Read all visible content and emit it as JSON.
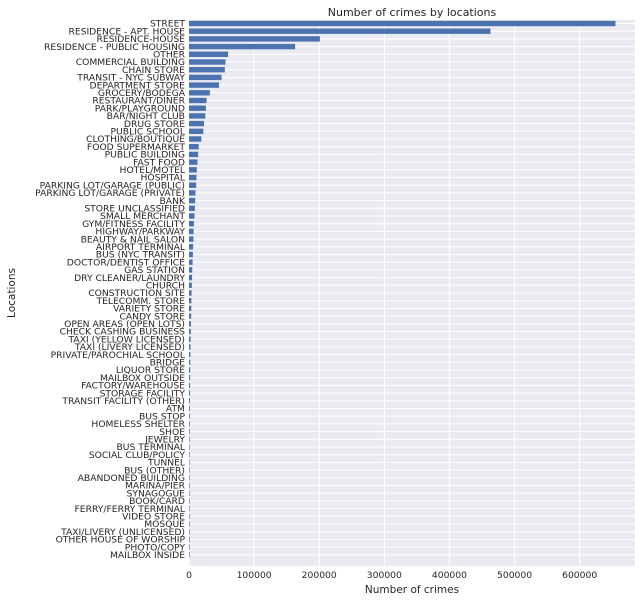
{
  "chart_data": {
    "type": "bar",
    "orientation": "horizontal",
    "title": "Number of crimes by locations",
    "xlabel": "Number of crimes",
    "ylabel": "Locations",
    "xlim": [
      0,
      685000
    ],
    "xticks": [
      0,
      100000,
      200000,
      300000,
      400000,
      500000,
      600000
    ],
    "grid": true,
    "bar_color": "#4c72b0",
    "background_color": "#eaeaf2",
    "categories": [
      "STREET",
      "RESIDENCE - APT. HOUSE",
      "RESIDENCE-HOUSE",
      "RESIDENCE - PUBLIC HOUSING",
      "OTHER",
      "COMMERCIAL BUILDING",
      "CHAIN STORE",
      "TRANSIT - NYC SUBWAY",
      "DEPARTMENT STORE",
      "GROCERY/BODEGA",
      "RESTAURANT/DINER",
      "PARK/PLAYGROUND",
      "BAR/NIGHT CLUB",
      "DRUG STORE",
      "PUBLIC SCHOOL",
      "CLOTHING/BOUTIQUE",
      "FOOD SUPERMARKET",
      "PUBLIC BUILDING",
      "FAST FOOD",
      "HOTEL/MOTEL",
      "HOSPITAL",
      "PARKING LOT/GARAGE (PUBLIC)",
      "PARKING LOT/GARAGE (PRIVATE)",
      "BANK",
      "STORE UNCLASSIFIED",
      "SMALL MERCHANT",
      "GYM/FITNESS FACILITY",
      "HIGHWAY/PARKWAY",
      "BEAUTY & NAIL SALON",
      "AIRPORT TERMINAL",
      "BUS (NYC TRANSIT)",
      "DOCTOR/DENTIST OFFICE",
      "GAS STATION",
      "DRY CLEANER/LAUNDRY",
      "CHURCH",
      "CONSTRUCTION SITE",
      "TELECOMM. STORE",
      "VARIETY STORE",
      "CANDY STORE",
      "OPEN AREAS (OPEN LOTS)",
      "CHECK CASHING BUSINESS",
      "TAXI (YELLOW LICENSED)",
      "TAXI (LIVERY LICENSED)",
      "PRIVATE/PAROCHIAL SCHOOL",
      "BRIDGE",
      "LIQUOR STORE",
      "MAILBOX OUTSIDE",
      "FACTORY/WAREHOUSE",
      "STORAGE FACILITY",
      "TRANSIT FACILITY (OTHER)",
      "ATM",
      "BUS STOP",
      "HOMELESS SHELTER",
      "SHOE",
      "JEWELRY",
      "BUS TERMINAL",
      "SOCIAL CLUB/POLICY",
      "TUNNEL",
      "BUS (OTHER)",
      "ABANDONED BUILDING",
      "MARINA/PIER",
      "SYNAGOGUE",
      "BOOK/CARD",
      "FERRY/FERRY TERMINAL",
      "VIDEO STORE",
      "MOSQUE",
      "TAXI/LIVERY (UNLICENSED)",
      "OTHER HOUSE OF WORSHIP",
      "PHOTO/COPY",
      "MAILBOX INSIDE"
    ],
    "values": [
      655000,
      463000,
      201000,
      163000,
      60000,
      56000,
      55000,
      50000,
      46000,
      32000,
      27000,
      26000,
      25000,
      23000,
      22000,
      19000,
      15000,
      14000,
      13000,
      12000,
      11500,
      11000,
      10000,
      9500,
      9000,
      8500,
      7500,
      7000,
      6800,
      6300,
      6000,
      5500,
      5000,
      4700,
      4300,
      4000,
      3700,
      3500,
      3300,
      3000,
      2700,
      2500,
      2300,
      2100,
      1900,
      1800,
      1700,
      1600,
      1500,
      1400,
      1300,
      1200,
      1100,
      1000,
      950,
      900,
      850,
      800,
      700,
      600,
      500,
      450,
      400,
      350,
      300,
      250,
      200,
      180,
      150,
      100
    ]
  }
}
